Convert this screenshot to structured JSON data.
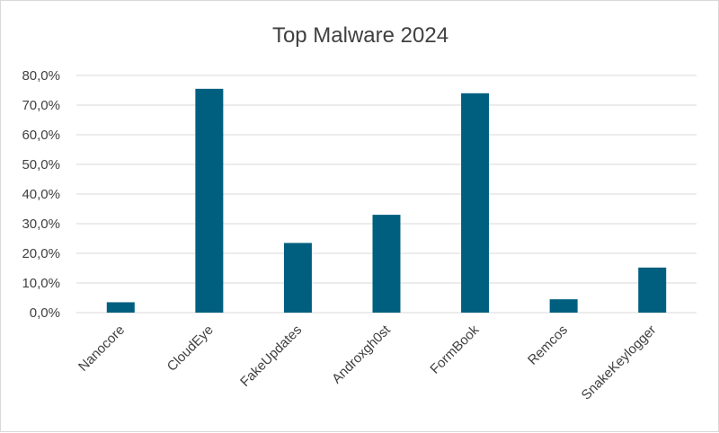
{
  "chart_data": {
    "type": "bar",
    "title": "Top Malware 2024",
    "xlabel": "",
    "ylabel": "",
    "categories": [
      "Nanocore",
      "CloudEye",
      "FakeUpdates",
      "Androxgh0st",
      "FormBook",
      "Remcos",
      "SnakeKeylogger"
    ],
    "values": [
      3.5,
      75.5,
      23.5,
      33.0,
      74.0,
      4.5,
      15.2
    ],
    "ylim": [
      0,
      80
    ],
    "yticks": [
      "0,0%",
      "10,0%",
      "20,0%",
      "30,0%",
      "40,0%",
      "50,0%",
      "60,0%",
      "70,0%",
      "80,0%"
    ],
    "grid": true,
    "legend": "none",
    "bar_color": "#005f7f"
  }
}
